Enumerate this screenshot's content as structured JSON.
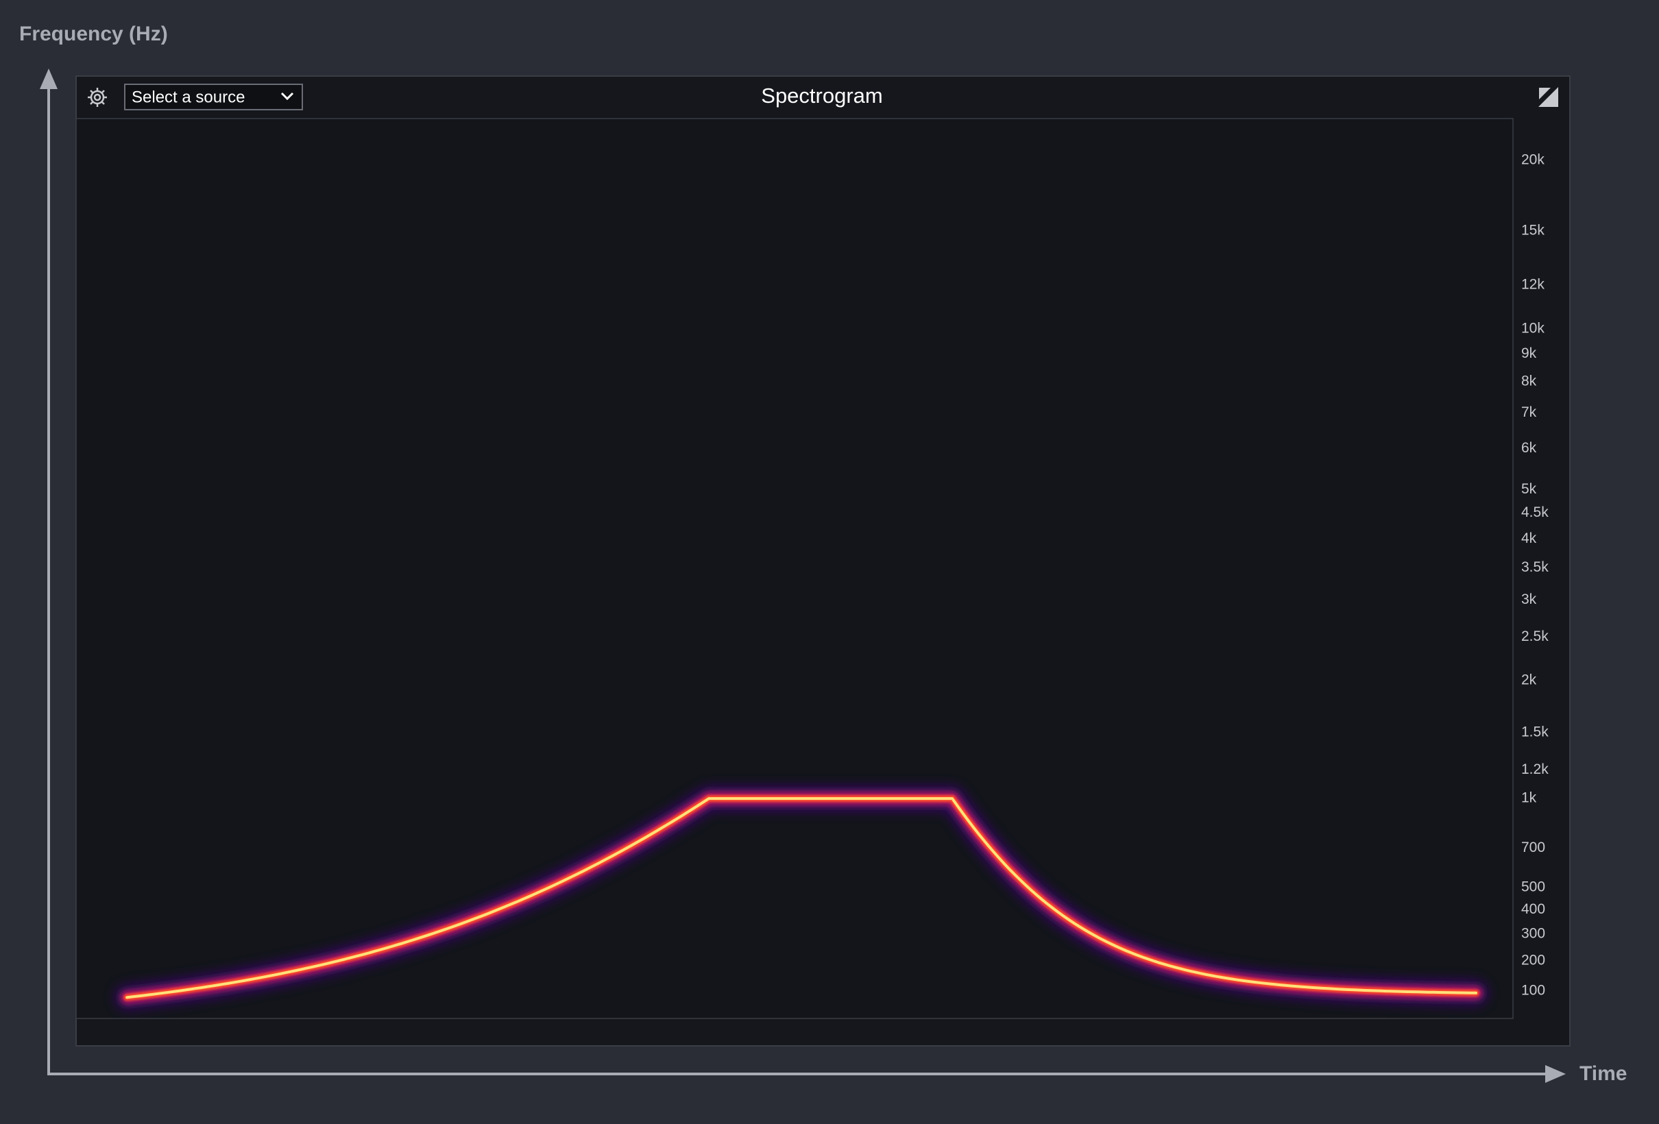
{
  "axis_labels": {
    "y": "Frequency (Hz)",
    "x": "Time"
  },
  "panel": {
    "title": "Spectrogram",
    "source_select": "Select a source"
  },
  "frequency_axis": {
    "scale": "mel",
    "ticks": [
      {
        "value": 20000,
        "label": "20k"
      },
      {
        "value": 15000,
        "label": "15k"
      },
      {
        "value": 12000,
        "label": "12k"
      },
      {
        "value": 10000,
        "label": "10k"
      },
      {
        "value": 9000,
        "label": "9k"
      },
      {
        "value": 8000,
        "label": "8k"
      },
      {
        "value": 7000,
        "label": "7k"
      },
      {
        "value": 6000,
        "label": "6k"
      },
      {
        "value": 5000,
        "label": "5k"
      },
      {
        "value": 4500,
        "label": "4.5k"
      },
      {
        "value": 4000,
        "label": "4k"
      },
      {
        "value": 3500,
        "label": "3.5k"
      },
      {
        "value": 3000,
        "label": "3k"
      },
      {
        "value": 2500,
        "label": "2.5k"
      },
      {
        "value": 2000,
        "label": "2k"
      },
      {
        "value": 1500,
        "label": "1.5k"
      },
      {
        "value": 1200,
        "label": "1.2k"
      },
      {
        "value": 1000,
        "label": "1k"
      },
      700,
      500,
      400,
      300,
      200,
      100
    ]
  }
}
